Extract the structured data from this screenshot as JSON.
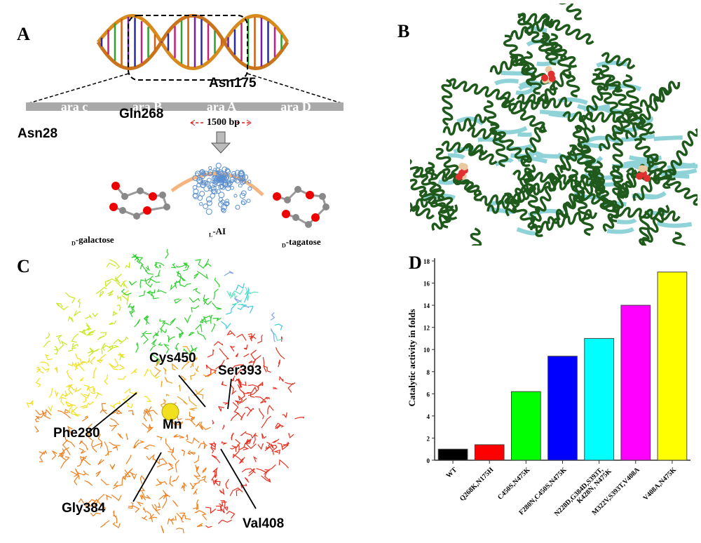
{
  "panels": {
    "a": {
      "label": "A",
      "genes": [
        {
          "name": "ara c",
          "color": "#7fae3a"
        },
        {
          "name": "ara B",
          "color": "#3a6fb5"
        },
        {
          "name": "ara A",
          "color": "#b8403b"
        },
        {
          "name": "ara D",
          "color": "#41a9c8"
        }
      ],
      "length_label": "1500 bp",
      "substrate": "D-galactose",
      "substrate_prefix": "D",
      "substrate_name": "-galactose",
      "enzyme_prefix": "L",
      "enzyme_name": "-AI",
      "product_prefix": "D",
      "product_name": "-tagatose"
    },
    "b": {
      "label": "B"
    },
    "c": {
      "label": "C",
      "residues": [
        "Gln268",
        "Asn175",
        "Asn28",
        "Cys450",
        "Ser393",
        "Mn",
        "Phe280",
        "Gly384",
        "Val408"
      ]
    },
    "d": {
      "label": "D"
    }
  },
  "chart_data": {
    "type": "bar",
    "title": "",
    "xlabel": "",
    "ylabel": "Catalytic activity in folds",
    "ylim": [
      0,
      18
    ],
    "yticks": [
      0,
      2,
      4,
      6,
      8,
      10,
      12,
      14,
      16,
      18
    ],
    "categories": [
      "WT",
      "Q268K,N175H",
      "C450S,N475K",
      "F280N,C450S,N475K",
      "N228D,G384D,S393T, K428N, N475K",
      "M322V,S393T,V408A",
      "V408A,N475K"
    ],
    "category_lines": [
      [
        "WT"
      ],
      [
        "Q268K,N175H"
      ],
      [
        "C450S,N475K"
      ],
      [
        "F280N,C450S,N475K"
      ],
      [
        "N228D,G384D,S393T,",
        "K428N, N475K"
      ],
      [
        "M322V,S393T,V408A"
      ],
      [
        "V408A,N475K"
      ]
    ],
    "values": [
      1.0,
      1.4,
      6.2,
      9.4,
      11.0,
      14.0,
      17.0
    ],
    "colors": [
      "#000000",
      "#ff0000",
      "#00ff00",
      "#0000ff",
      "#00ffff",
      "#ff00ff",
      "#ffff00"
    ],
    "grid": false,
    "legend": "none"
  }
}
